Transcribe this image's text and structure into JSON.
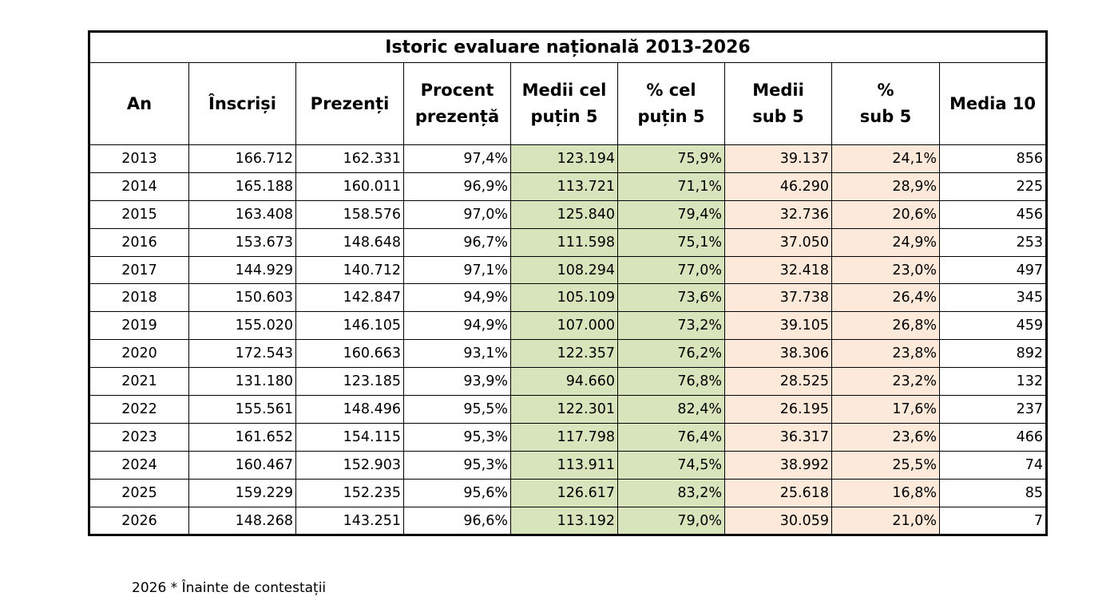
{
  "title": "Istoric evaluare națională 2013-2026",
  "headers": [
    "An",
    "Înscriși",
    "Prezenți",
    "Procent\nprezență",
    "Medii cel\npuțin 5",
    "% cel\npuțin 5",
    "Medii\nsub 5",
    "%\nsub 5",
    "Media 10"
  ],
  "rows": [
    [
      "2013",
      "166.712",
      "162.331",
      "97,4%",
      "123.194",
      "75,9%",
      "39.137",
      "24,1%",
      "856"
    ],
    [
      "2014",
      "165.188",
      "160.011",
      "96,9%",
      "113.721",
      "71,1%",
      "46.290",
      "28,9%",
      "225"
    ],
    [
      "2015",
      "163.408",
      "158.576",
      "97,0%",
      "125.840",
      "79,4%",
      "32.736",
      "20,6%",
      "456"
    ],
    [
      "2016",
      "153.673",
      "148.648",
      "96,7%",
      "111.598",
      "75,1%",
      "37.050",
      "24,9%",
      "253"
    ],
    [
      "2017",
      "144.929",
      "140.712",
      "97,1%",
      "108.294",
      "77,0%",
      "32.418",
      "23,0%",
      "497"
    ],
    [
      "2018",
      "150.603",
      "142.847",
      "94,9%",
      "105.109",
      "73,6%",
      "37.738",
      "26,4%",
      "345"
    ],
    [
      "2019",
      "155.020",
      "146.105",
      "94,9%",
      "107.000",
      "73,2%",
      "39.105",
      "26,8%",
      "459"
    ],
    [
      "2020",
      "172.543",
      "160.663",
      "93,1%",
      "122.357",
      "76,2%",
      "38.306",
      "23,8%",
      "892"
    ],
    [
      "2021",
      "131.180",
      "123.185",
      "93,9%",
      "94.660",
      "76,8%",
      "28.525",
      "23,2%",
      "132"
    ],
    [
      "2022",
      "155.561",
      "148.496",
      "95,5%",
      "122.301",
      "82,4%",
      "26.195",
      "17,6%",
      "237"
    ],
    [
      "2023",
      "161.652",
      "154.115",
      "95,3%",
      "117.798",
      "76,4%",
      "36.317",
      "23,6%",
      "466"
    ],
    [
      "2024",
      "160.467",
      "152.903",
      "95,3%",
      "113.911",
      "74,5%",
      "38.992",
      "25,5%",
      "74"
    ],
    [
      "2025",
      "159.229",
      "152.235",
      "95,6%",
      "126.617",
      "83,2%",
      "25.618",
      "16,8%",
      "85"
    ],
    [
      "2026",
      "148.268",
      "143.251",
      "96,6%",
      "113.192",
      "79,0%",
      "30.059",
      "21,0%",
      "7"
    ]
  ],
  "footnote": "2026 *  Înainte de contestații",
  "colors": {
    "pass_fill": "#d8e4bc",
    "fail_fill": "#fde9d9",
    "border": "#000000"
  }
}
